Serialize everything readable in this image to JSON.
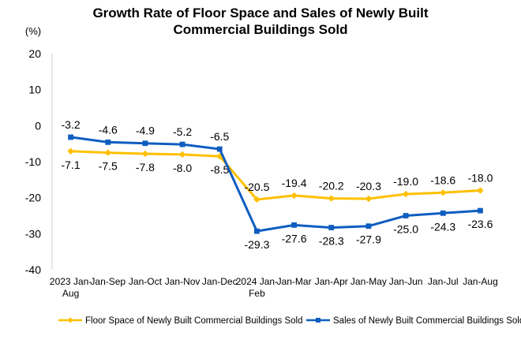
{
  "chart_data": {
    "type": "line",
    "title_lines": [
      "Growth Rate of Floor Space and Sales of Newly Built",
      "Commercial Buildings Sold"
    ],
    "ylabel": "(%)",
    "xlabel": "",
    "ylim": [
      -40,
      20
    ],
    "yticks": [
      20,
      10,
      0,
      -10,
      -20,
      -30,
      -40
    ],
    "grid": false,
    "legend_position": "bottom",
    "categories": [
      [
        "2023 Jan-",
        "Aug"
      ],
      [
        "Jan-Sep"
      ],
      [
        "Jan-Oct"
      ],
      [
        "Jan-Nov"
      ],
      [
        "Jan-Dec"
      ],
      [
        "2024 Jan-",
        "Feb"
      ],
      [
        "Jan-Mar"
      ],
      [
        "Jan-Apr"
      ],
      [
        "Jan-May"
      ],
      [
        "Jan-Jun"
      ],
      [
        "Jan-Jul"
      ],
      [
        "Jan-Aug"
      ]
    ],
    "series": [
      {
        "name": "Floor Space of Newly Built Commercial Buildings Sold",
        "color": "#FFC000",
        "marker": "diamond",
        "label_position": "below-then-above",
        "values": [
          -7.1,
          -7.5,
          -7.8,
          -8.0,
          -8.5,
          -20.5,
          -19.4,
          -20.2,
          -20.3,
          -19.0,
          -18.6,
          -18.0
        ],
        "labels": [
          "-7.1",
          "-7.5",
          "-7.8",
          "-8.0",
          "-8.5",
          "-20.5",
          "-19.4",
          "-20.2",
          "-20.3",
          "-19.0",
          "-18.6",
          "-18.0"
        ]
      },
      {
        "name": "Sales of Newly Built Commercial Buildings Sold",
        "color": "#0F5DC0",
        "marker": "square",
        "label_position": "above-then-below",
        "values": [
          -3.2,
          -4.6,
          -4.9,
          -5.2,
          -6.5,
          -29.3,
          -27.6,
          -28.3,
          -27.9,
          -25.0,
          -24.3,
          -23.6
        ],
        "labels": [
          "-3.2",
          "-4.6",
          "-4.9",
          "-5.2",
          "-6.5",
          "-29.3",
          "-27.6",
          "-28.3",
          "-27.9",
          "-25.0",
          "-24.3",
          "-23.6"
        ]
      }
    ]
  }
}
